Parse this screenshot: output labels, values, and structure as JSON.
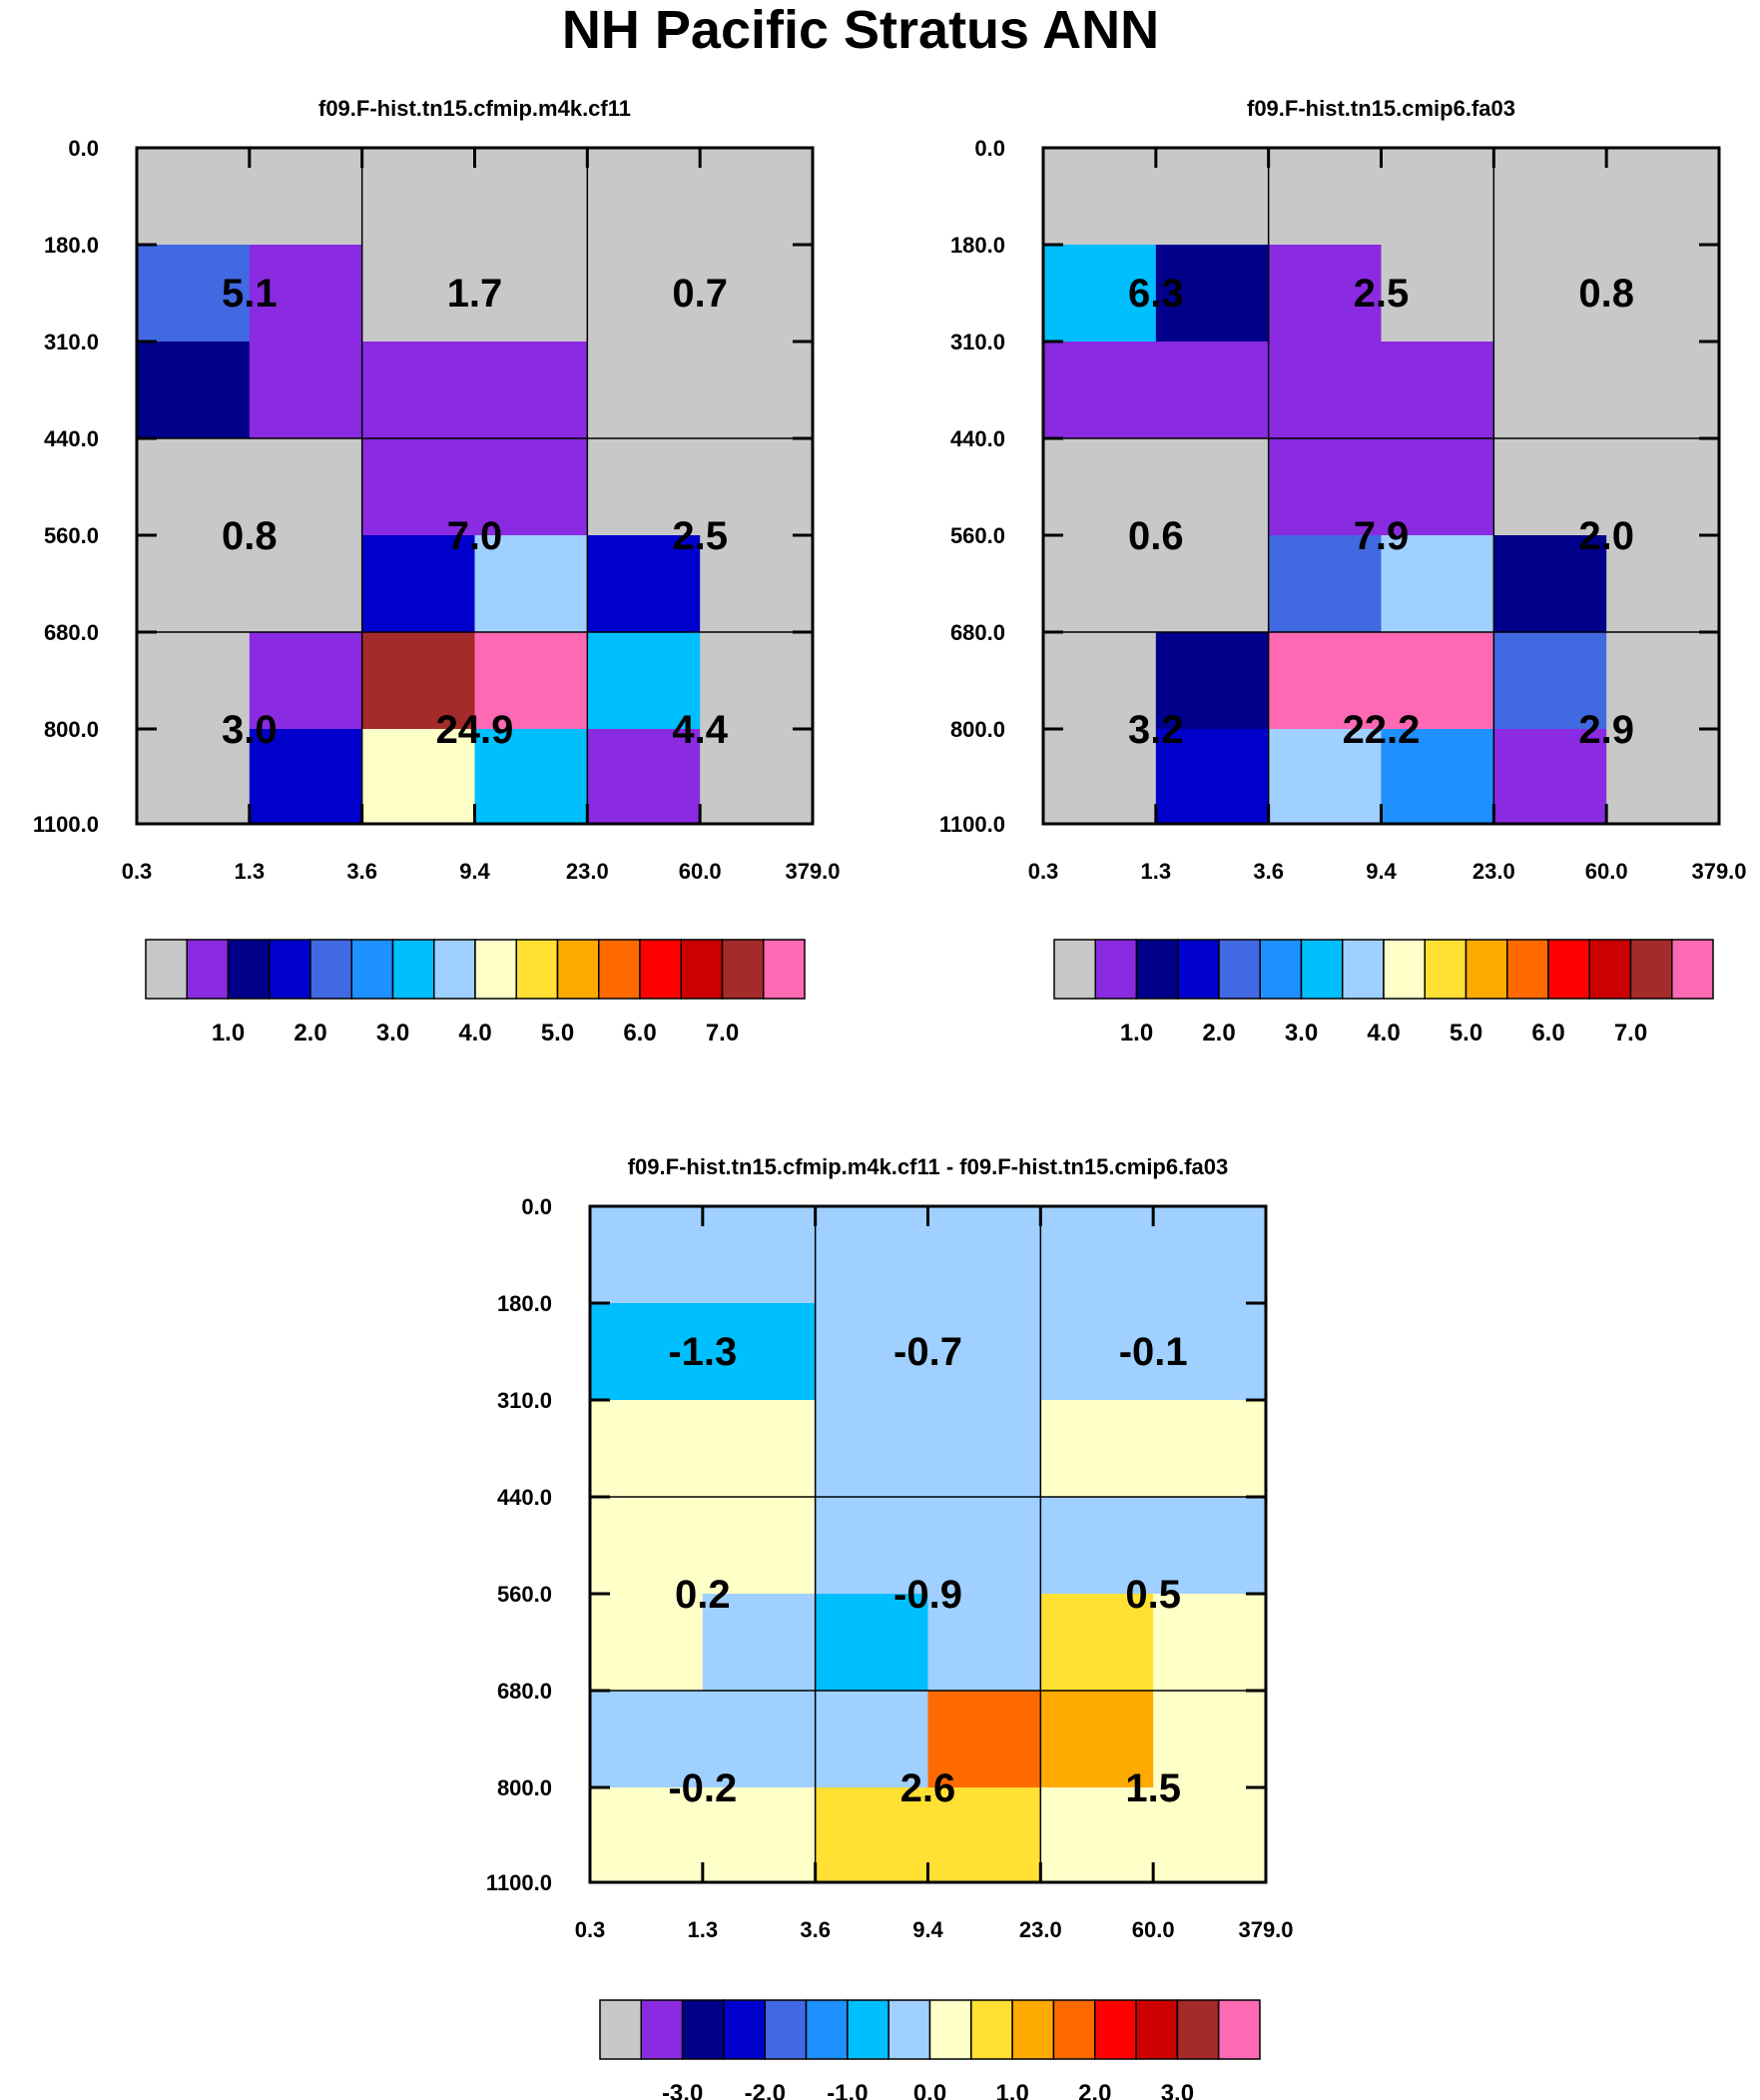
{
  "title": "NH Pacific Stratus ANN",
  "palette": [
    "#c8c8c8",
    "#8a2be2",
    "#00008b",
    "#0000cd",
    "#4169e1",
    "#1e90ff",
    "#00bfff",
    "#a0d0ff",
    "#ffffc8",
    "#ffe033",
    "#ffaa00",
    "#ff6a00",
    "#ff0000",
    "#cc0000",
    "#a52a2a",
    "#ff69b4"
  ],
  "chart_data": [
    {
      "type": "heatmap",
      "title": "f09.F-hist.tn15.cfmip.m4k.cf11",
      "x_ticks": [
        "0.3",
        "1.3",
        "3.6",
        "9.4",
        "23.0",
        "60.0",
        "379.0"
      ],
      "y_ticks": [
        "0.0",
        "180.0",
        "310.0",
        "440.0",
        "560.0",
        "680.0",
        "800.0",
        "1100.0"
      ],
      "cells": [
        [
          0,
          0,
          0,
          0,
          0,
          0
        ],
        [
          4,
          1,
          0,
          0,
          0,
          0
        ],
        [
          2,
          1,
          1,
          1,
          0,
          0
        ],
        [
          0,
          0,
          1,
          1,
          0,
          0
        ],
        [
          0,
          0,
          3,
          7,
          3,
          0
        ],
        [
          0,
          1,
          14,
          15,
          6,
          0
        ],
        [
          0,
          3,
          8,
          6,
          1,
          0
        ]
      ],
      "block_values": [
        [
          "5.1",
          "1.7",
          "0.7"
        ],
        [
          "0.8",
          "7.0",
          "2.5"
        ],
        [
          "3.0",
          "24.9",
          "4.4"
        ]
      ],
      "colorbar_labels": [
        "1.0",
        "2.0",
        "3.0",
        "4.0",
        "5.0",
        "6.0",
        "7.0"
      ]
    },
    {
      "type": "heatmap",
      "title": "f09.F-hist.tn15.cmip6.fa03",
      "x_ticks": [
        "0.3",
        "1.3",
        "3.6",
        "9.4",
        "23.0",
        "60.0",
        "379.0"
      ],
      "y_ticks": [
        "0.0",
        "180.0",
        "310.0",
        "440.0",
        "560.0",
        "680.0",
        "800.0",
        "1100.0"
      ],
      "cells": [
        [
          0,
          0,
          0,
          0,
          0,
          0
        ],
        [
          6,
          2,
          1,
          0,
          0,
          0
        ],
        [
          1,
          1,
          1,
          1,
          0,
          0
        ],
        [
          0,
          0,
          1,
          1,
          0,
          0
        ],
        [
          0,
          0,
          4,
          7,
          2,
          0
        ],
        [
          0,
          2,
          15,
          15,
          4,
          0
        ],
        [
          0,
          3,
          7,
          5,
          1,
          0
        ]
      ],
      "block_values": [
        [
          "6.3",
          "2.5",
          "0.8"
        ],
        [
          "0.6",
          "7.9",
          "2.0"
        ],
        [
          "3.2",
          "22.2",
          "2.9"
        ]
      ],
      "colorbar_labels": [
        "1.0",
        "2.0",
        "3.0",
        "4.0",
        "5.0",
        "6.0",
        "7.0"
      ]
    },
    {
      "type": "heatmap",
      "title": "f09.F-hist.tn15.cfmip.m4k.cf11 - f09.F-hist.tn15.cmip6.fa03",
      "x_ticks": [
        "0.3",
        "1.3",
        "3.6",
        "9.4",
        "23.0",
        "60.0",
        "379.0"
      ],
      "y_ticks": [
        "0.0",
        "180.0",
        "310.0",
        "440.0",
        "560.0",
        "680.0",
        "800.0",
        "1100.0"
      ],
      "cells": [
        [
          7,
          7,
          7,
          7,
          7,
          7
        ],
        [
          6,
          6,
          7,
          7,
          7,
          7
        ],
        [
          8,
          8,
          7,
          7,
          8,
          8
        ],
        [
          8,
          8,
          7,
          7,
          7,
          7
        ],
        [
          8,
          7,
          6,
          7,
          9,
          8
        ],
        [
          7,
          7,
          7,
          11,
          10,
          8
        ],
        [
          8,
          8,
          9,
          9,
          8,
          8
        ]
      ],
      "block_values": [
        [
          "-1.3",
          "-0.7",
          "-0.1"
        ],
        [
          "0.2",
          "-0.9",
          "0.5"
        ],
        [
          "-0.2",
          "2.6",
          "1.5"
        ]
      ],
      "colorbar_labels": [
        "-3.0",
        "-2.0",
        "-1.0",
        "0.0",
        "1.0",
        "2.0",
        "3.0"
      ]
    }
  ]
}
